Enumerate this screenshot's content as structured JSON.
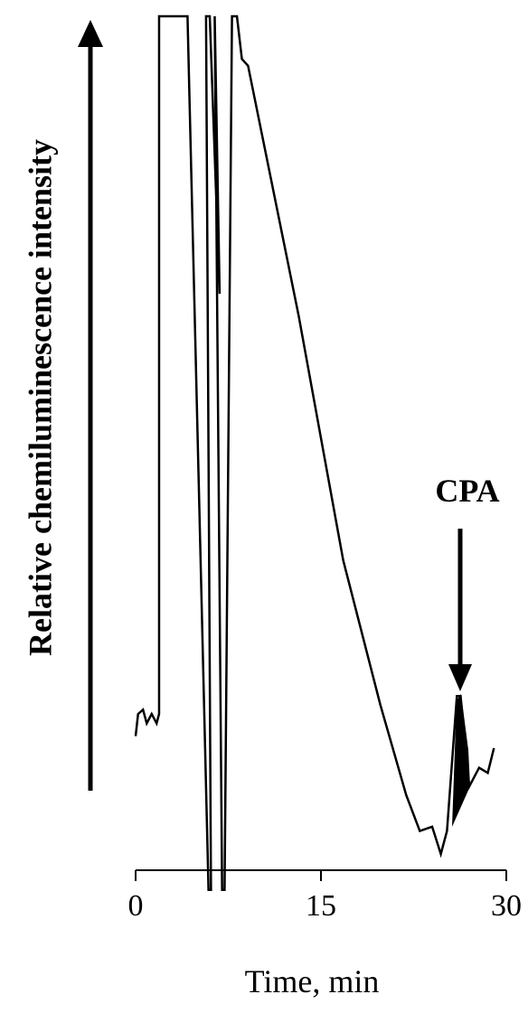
{
  "chart_data": {
    "type": "line",
    "x_label": "Time, min",
    "y_label": "Relative chemiluminescence intensity",
    "annotation": "CPA",
    "xlim": [
      0,
      30
    ],
    "xticks": [
      0,
      15,
      30
    ],
    "ylim": [
      0,
      100
    ],
    "color": "#000000",
    "x": [
      0,
      0.2,
      0.6,
      0.9,
      1.3,
      1.7,
      1.9,
      1.9,
      4.2,
      5.9,
      6.1,
      5.7,
      6.0,
      6.8,
      6.4,
      7.0,
      7.2,
      7.8,
      8.2,
      8.6,
      9.1,
      13.2,
      16.8,
      19.8,
      21.9,
      23.0,
      24.0,
      24.7,
      25.2,
      26.0,
      26.3,
      27.0,
      27.8,
      28.5,
      29.0
    ],
    "values": [
      15.7,
      18.3,
      18.8,
      17.2,
      18.3,
      17.2,
      18.3,
      100,
      100,
      -2.3,
      -2.3,
      100,
      100,
      67.5,
      100,
      -2.3,
      -2.3,
      100,
      100,
      95,
      94.2,
      64.9,
      36.3,
      19.4,
      8.8,
      4.6,
      5.1,
      1.9,
      4.6,
      20.4,
      20.4,
      9.8,
      12.0,
      11.4,
      14.3
    ]
  }
}
